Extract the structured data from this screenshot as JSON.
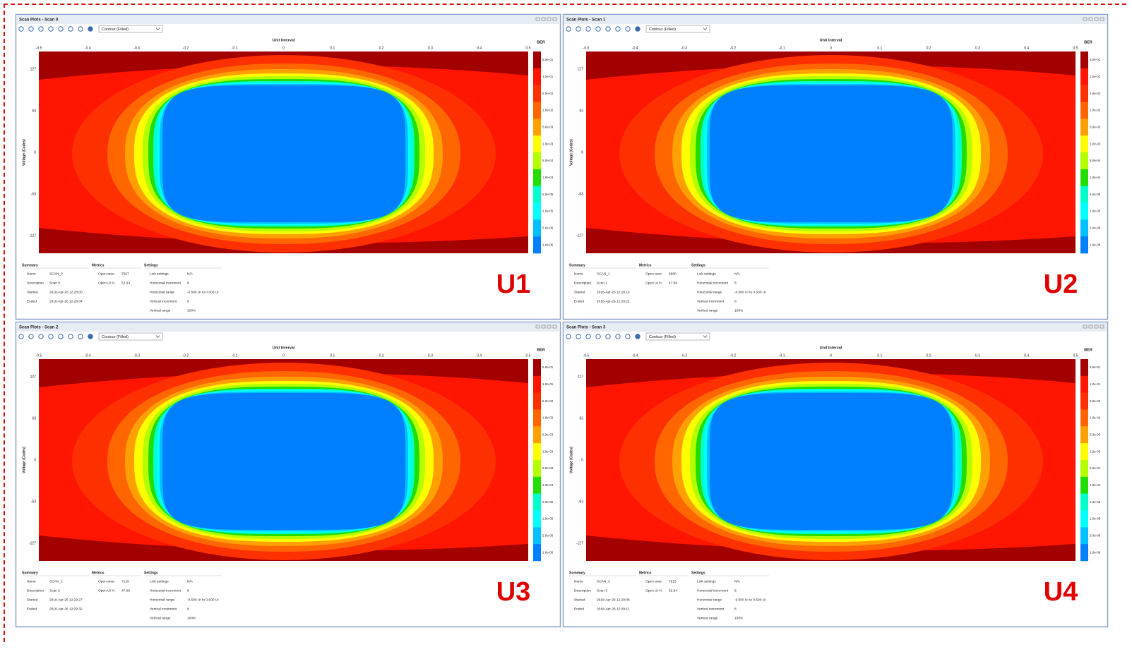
{
  "axes": {
    "x_title": "Unit Interval",
    "x_ticks": [
      "-0.5",
      "-0.4",
      "-0.3",
      "-0.2",
      "-0.1",
      "0",
      "0.1",
      "0.2",
      "0.3",
      "0.4",
      "0.5"
    ],
    "y_title": "Voltage (Codes)",
    "y_ticks": [
      "127",
      "63",
      "0",
      "-63",
      "-127"
    ],
    "colorbar_title": "BER",
    "colorbar_labels": [
      "5.0e-01",
      "1.0e-01",
      "5.0e-02",
      "1.0e-02",
      "5.0e-03",
      "1.0e-03",
      "5.0e-04",
      "1.0e-04",
      "5.0e-05",
      "1.0e-05",
      "5.0e-06",
      "1.0e-06"
    ],
    "colors": [
      "#a30000",
      "#ff1500",
      "#ff3000",
      "#ff6600",
      "#ffa000",
      "#ffff00",
      "#b4ff00",
      "#22dd00",
      "#00ffcc",
      "#00ffff",
      "#00c0ff",
      "#0080ff"
    ]
  },
  "section_titles": {
    "summary": "Summary",
    "metrics": "Metrics",
    "settings": "Settings"
  },
  "panels": [
    {
      "title": "Scan Plots - Scan 0",
      "dropdown": "Contour (Filled)",
      "summary": [
        [
          "Name",
          "SCAN_0"
        ],
        [
          "Description",
          "Scan 0"
        ],
        [
          "Started",
          "2018-Apr-26 12:28:00"
        ],
        [
          "Ended",
          "2018-Apr-26 12:28:04"
        ]
      ],
      "metrics": [
        [
          "Open area",
          "7567"
        ],
        [
          "Open UI %",
          "52.94"
        ]
      ],
      "settings": [
        [
          "Link settings",
          "N/A"
        ],
        [
          "Horizontal increment",
          "8"
        ],
        [
          "Horizontal range",
          "-0.500 UI to 0.500 UI"
        ],
        [
          "Vertical increment",
          "8"
        ],
        [
          "Vertical range",
          "100%"
        ]
      ],
      "label": "U1"
    },
    {
      "title": "Scan Plots - Scan 1",
      "dropdown": "Contour (Filled)",
      "summary": [
        [
          "Name",
          "SCAN_1"
        ],
        [
          "Description",
          "Scan 1"
        ],
        [
          "Started",
          "2018-Apr-26 12:28:16"
        ],
        [
          "Ended",
          "2018-Apr-26 12:28:21"
        ]
      ],
      "metrics": [
        [
          "Open area",
          "5980"
        ],
        [
          "Open UI %",
          "47.06"
        ]
      ],
      "settings": [
        [
          "Link settings",
          "N/A"
        ],
        [
          "Horizontal increment",
          "8"
        ],
        [
          "Horizontal range",
          "-0.500 UI to 0.500 UI"
        ],
        [
          "Vertical increment",
          "8"
        ],
        [
          "Vertical range",
          "100%"
        ]
      ],
      "label": "U2"
    },
    {
      "title": "Scan Plots - Scan 2",
      "dropdown": "Contour (Filled)",
      "summary": [
        [
          "Name",
          "SCAN_2"
        ],
        [
          "Description",
          "Scan 2"
        ],
        [
          "Started",
          "2018-Apr-26 12:29:27"
        ],
        [
          "Ended",
          "2018-Apr-26 12:29:32"
        ]
      ],
      "metrics": [
        [
          "Open area",
          "7129"
        ],
        [
          "Open UI %",
          "47.06"
        ]
      ],
      "settings": [
        [
          "Link settings",
          "N/A"
        ],
        [
          "Horizontal increment",
          "8"
        ],
        [
          "Horizontal range",
          "-0.500 UI to 0.500 UI"
        ],
        [
          "Vertical increment",
          "8"
        ],
        [
          "Vertical range",
          "100%"
        ]
      ],
      "label": "U3"
    },
    {
      "title": "Scan Plots - Scan 3",
      "dropdown": "Contour (Filled)",
      "summary": [
        [
          "Name",
          "SCAN_3"
        ],
        [
          "Description",
          "Scan 3"
        ],
        [
          "Started",
          "2018-Apr-26 12:29:06"
        ],
        [
          "Ended",
          "2018-Apr-26 12:29:11"
        ]
      ],
      "metrics": [
        [
          "Open area",
          "7615"
        ],
        [
          "Open UI %",
          "52.94"
        ]
      ],
      "settings": [
        [
          "Link settings",
          "N/A"
        ],
        [
          "Horizontal increment",
          "8"
        ],
        [
          "Horizontal range",
          "-0.500 UI to 0.500 UI"
        ],
        [
          "Vertical increment",
          "8"
        ],
        [
          "Vertical range",
          "100%"
        ]
      ],
      "label": "U4"
    }
  ]
}
